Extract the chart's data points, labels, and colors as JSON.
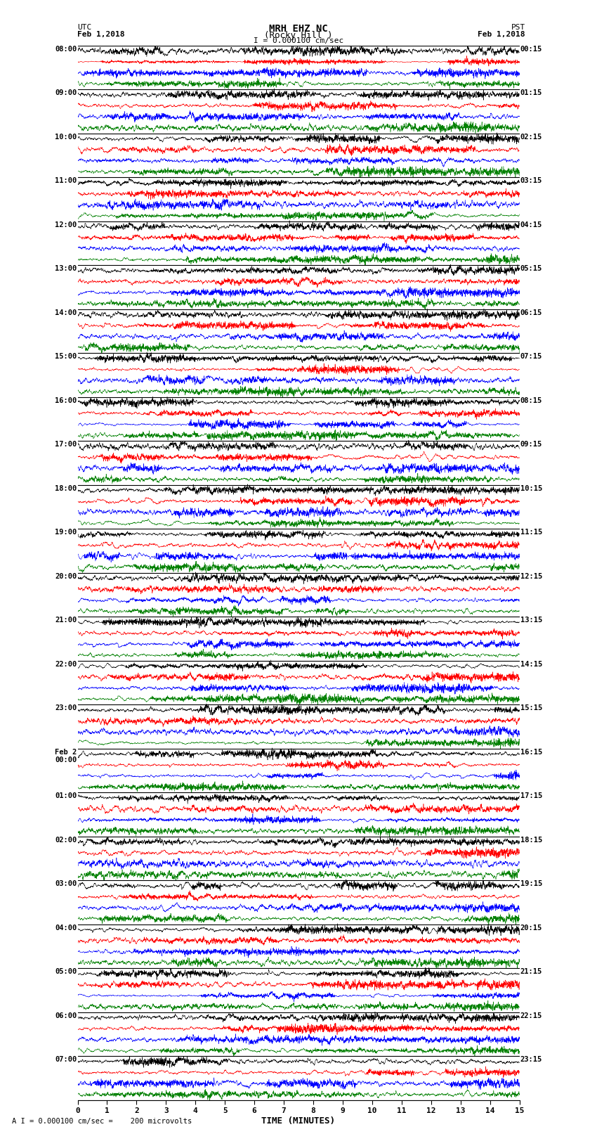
{
  "title_line1": "MRH EHZ NC",
  "title_line2": "(Rocky Hill )",
  "scale_label": "I = 0.000100 cm/sec",
  "bottom_label": "A I = 0.000100 cm/sec =    200 microvolts",
  "xlabel": "TIME (MINUTES)",
  "utc_label": "UTC",
  "utc_date": "Feb 1,2018",
  "pst_label": "PST",
  "pst_date": "Feb 1,2018",
  "left_times": [
    "08:00",
    "09:00",
    "10:00",
    "11:00",
    "12:00",
    "13:00",
    "14:00",
    "15:00",
    "16:00",
    "17:00",
    "18:00",
    "19:00",
    "20:00",
    "21:00",
    "22:00",
    "23:00",
    "Feb 2\n00:00",
    "01:00",
    "02:00",
    "03:00",
    "04:00",
    "05:00",
    "06:00",
    "07:00"
  ],
  "right_times": [
    "00:15",
    "01:15",
    "02:15",
    "03:15",
    "04:15",
    "05:15",
    "06:15",
    "07:15",
    "08:15",
    "09:15",
    "10:15",
    "11:15",
    "12:15",
    "13:15",
    "14:15",
    "15:15",
    "16:15",
    "17:15",
    "18:15",
    "19:15",
    "20:15",
    "21:15",
    "22:15",
    "23:15"
  ],
  "num_rows": 24,
  "minutes_per_row": 15,
  "colors": [
    "black",
    "red",
    "blue",
    "green"
  ],
  "bg_color": "white",
  "xmin": 0,
  "xmax": 15,
  "xticks": [
    0,
    1,
    2,
    3,
    4,
    5,
    6,
    7,
    8,
    9,
    10,
    11,
    12,
    13,
    14,
    15
  ],
  "seed": 42
}
